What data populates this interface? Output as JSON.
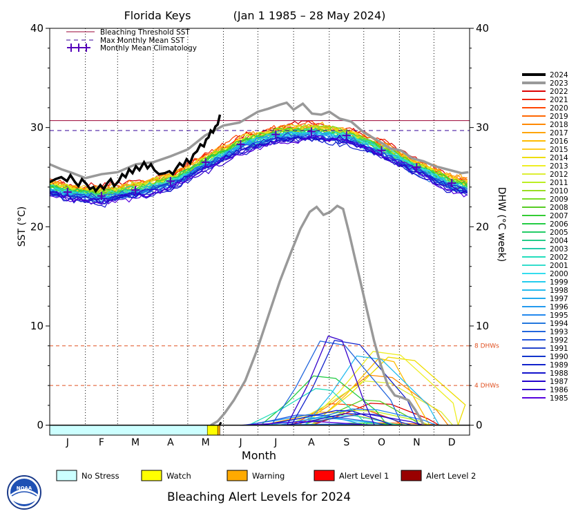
{
  "header": {
    "region": "Florida Keys",
    "period": "(Jan 1 1985 – 28 May 2024)"
  },
  "footer": {
    "title": "Bleaching Alert Levels for 2024",
    "logo_text": "NOAA",
    "alert_levels": [
      {
        "label": "No Stress",
        "color": "#ccffff"
      },
      {
        "label": "Watch",
        "color": "#ffff00"
      },
      {
        "label": "Warning",
        "color": "#ffaa00"
      },
      {
        "label": "Alert Level 1",
        "color": "#ff0000"
      },
      {
        "label": "Alert Level 2",
        "color": "#990000"
      }
    ]
  },
  "chart_data": {
    "type": "line",
    "xlabel": "Month",
    "ylabel_left": "SST (°C)",
    "ylabel_right": "DHW (°C week)",
    "ylim": [
      -1,
      40
    ],
    "yticks": [
      0,
      10,
      20,
      30,
      40
    ],
    "months": [
      "J",
      "F",
      "M",
      "A",
      "M",
      "J",
      "J",
      "A",
      "S",
      "O",
      "N",
      "D"
    ],
    "legend_top": [
      {
        "label": "Bleaching Threshold SST",
        "style": "solid",
        "color": "#990033"
      },
      {
        "label": "Max Monthly Mean SST",
        "style": "dashed",
        "color": "#330099"
      },
      {
        "label": "Monthly Mean Climatology",
        "style": "plus",
        "color": "#5500bb"
      }
    ],
    "bleaching_threshold_sst": 30.7,
    "max_monthly_mean_sst": 29.7,
    "dhw_reference_lines": [
      {
        "value": 8,
        "label": "8 DHWs"
      },
      {
        "value": 4,
        "label": "4 DHWs"
      }
    ],
    "monthly_mean_climatology": [
      23.5,
      23.1,
      23.7,
      24.6,
      26.5,
      28.3,
      29.3,
      29.6,
      29.2,
      27.7,
      26.0,
      24.4
    ],
    "sst_2024": [
      [
        0,
        24.5
      ],
      [
        5,
        24.8
      ],
      [
        10,
        25
      ],
      [
        15,
        24.6
      ],
      [
        18,
        25.2
      ],
      [
        22,
        24.5
      ],
      [
        25,
        24.1
      ],
      [
        28,
        24.8
      ],
      [
        32,
        24.3
      ],
      [
        35,
        23.8
      ],
      [
        38,
        24
      ],
      [
        40,
        23.6
      ],
      [
        44,
        24.2
      ],
      [
        47,
        23.8
      ],
      [
        50,
        24.4
      ],
      [
        53,
        24.8
      ],
      [
        56,
        24.1
      ],
      [
        60,
        24.6
      ],
      [
        63,
        25.3
      ],
      [
        66,
        25
      ],
      [
        69,
        25.8
      ],
      [
        72,
        25.4
      ],
      [
        75,
        26.1
      ],
      [
        78,
        25.7
      ],
      [
        82,
        26.5
      ],
      [
        85,
        25.9
      ],
      [
        88,
        26.3
      ],
      [
        91,
        25.7
      ],
      [
        95,
        25.3
      ],
      [
        100,
        25.4
      ],
      [
        104,
        25.6
      ],
      [
        107,
        25.3
      ],
      [
        110,
        25.9
      ],
      [
        113,
        26.4
      ],
      [
        116,
        26.1
      ],
      [
        119,
        26.8
      ],
      [
        122,
        26.4
      ],
      [
        125,
        27.3
      ],
      [
        128,
        27.6
      ],
      [
        131,
        28.3
      ],
      [
        134,
        28.1
      ],
      [
        136,
        28.8
      ],
      [
        138,
        29
      ],
      [
        140,
        29.7
      ],
      [
        142,
        29.5
      ],
      [
        144,
        30.1
      ],
      [
        146,
        30.3
      ],
      [
        148,
        31.3
      ]
    ],
    "sst_2023": [
      [
        0,
        26.3
      ],
      [
        10,
        25.8
      ],
      [
        20,
        25.4
      ],
      [
        31,
        24.9
      ],
      [
        45,
        25.3
      ],
      [
        59,
        25.5
      ],
      [
        75,
        26.3
      ],
      [
        90,
        26.5
      ],
      [
        105,
        27.1
      ],
      [
        120,
        27.8
      ],
      [
        135,
        29.2
      ],
      [
        151,
        30.2
      ],
      [
        165,
        30.5
      ],
      [
        181,
        31.6
      ],
      [
        190,
        31.9
      ],
      [
        200,
        32.3
      ],
      [
        206,
        32.5
      ],
      [
        212,
        31.8
      ],
      [
        220,
        32.4
      ],
      [
        228,
        31.4
      ],
      [
        236,
        31.3
      ],
      [
        243,
        31.6
      ],
      [
        252,
        30.9
      ],
      [
        262,
        30.6
      ],
      [
        273,
        29.5
      ],
      [
        285,
        28.7
      ],
      [
        296,
        27.9
      ],
      [
        305,
        27.7
      ],
      [
        315,
        26.9
      ],
      [
        325,
        26.6
      ],
      [
        335,
        26.1
      ],
      [
        345,
        25.8
      ],
      [
        358,
        25.4
      ],
      [
        364,
        25.5
      ]
    ],
    "dhw_2023": [
      [
        140,
        0
      ],
      [
        146,
        0.4
      ],
      [
        152,
        1.2
      ],
      [
        160,
        2.5
      ],
      [
        170,
        4.5
      ],
      [
        180,
        7.5
      ],
      [
        190,
        11
      ],
      [
        200,
        14.5
      ],
      [
        210,
        17.5
      ],
      [
        218,
        19.8
      ],
      [
        226,
        21.5
      ],
      [
        232,
        22
      ],
      [
        238,
        21.2
      ],
      [
        244,
        21.5
      ],
      [
        250,
        22.1
      ],
      [
        255,
        21.8
      ],
      [
        260,
        19.5
      ],
      [
        265,
        17
      ],
      [
        270,
        14.5
      ],
      [
        276,
        11.5
      ],
      [
        282,
        8.5
      ],
      [
        288,
        6
      ],
      [
        294,
        4
      ],
      [
        300,
        3
      ],
      [
        306,
        2.8
      ],
      [
        312,
        2.5
      ],
      [
        318,
        1.5
      ],
      [
        322,
        0.7
      ],
      [
        325,
        0
      ]
    ],
    "series_years": [
      "2024",
      "2023",
      "2022",
      "2021",
      "2020",
      "2019",
      "2018",
      "2017",
      "2016",
      "2015",
      "2014",
      "2013",
      "2012",
      "2011",
      "2010",
      "2009",
      "2008",
      "2007",
      "2006",
      "2005",
      "2004",
      "2003",
      "2002",
      "2001",
      "2000",
      "1999",
      "1998",
      "1997",
      "1996",
      "1995",
      "1994",
      "1993",
      "1992",
      "1991",
      "1990",
      "1989",
      "1988",
      "1987",
      "1986",
      "1985"
    ],
    "series_colors": [
      "#000000",
      "#999999",
      "#dd0000",
      "#ee2200",
      "#ff4400",
      "#ff6600",
      "#ff8800",
      "#ffa500",
      "#ffbb00",
      "#ffcc22",
      "#eedd00",
      "#eeee22",
      "#ddee33",
      "#bbee22",
      "#99dd22",
      "#77dd22",
      "#55cc22",
      "#33cc33",
      "#22cc44",
      "#22cc66",
      "#22cc88",
      "#22ccaa",
      "#22ddbb",
      "#33ddcc",
      "#33ddee",
      "#22ccee",
      "#22bbee",
      "#22aaee",
      "#2299ee",
      "#2288ee",
      "#2277dd",
      "#2266dd",
      "#2255dd",
      "#2244cc",
      "#1133cc",
      "#1122cc",
      "#1111cc",
      "#2200cc",
      "#3300cc",
      "#5500dd"
    ],
    "alert_bar_2024": [
      {
        "from_day": 0,
        "to_day": 137,
        "level": "No Stress"
      },
      {
        "from_day": 137,
        "to_day": 146,
        "level": "Watch"
      },
      {
        "from_day": 146,
        "to_day": 148,
        "level": "Warning"
      }
    ]
  }
}
